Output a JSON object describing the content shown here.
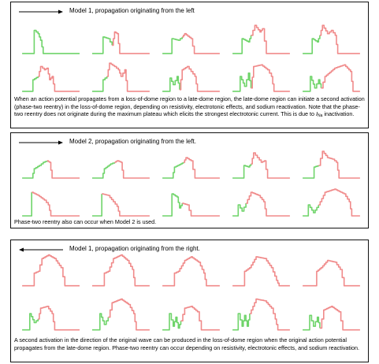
{
  "colors": {
    "green": "#6fd46a",
    "pink": "#f08a8a",
    "panel_border": "#111111"
  },
  "panels": [
    {
      "label": "Model 1, propagation originating from the left",
      "arrow_direction": "right",
      "caption_parts": [
        "When an action potential propagates from a loss-of-dome region to a late-dome region, the late-dome region can initiate a second activation (phase-two reentry) in the loss-of-dome region, depending on resistivity, electrotonic effects, and sodium reactivation. Note that the phase-two reentry does not originate during the maximum plateau which elicits the strongest electrotonic current. This is due to ",
        "I",
        "Na",
        " inactivation."
      ]
    },
    {
      "label": "Model 2, propagation originating from the left.",
      "arrow_direction": "right",
      "caption_parts": [
        "Phase-two reentry also can occur when Model 2 is used."
      ]
    },
    {
      "label": "Model 1, propagation originating from the right.",
      "arrow_direction": "left",
      "caption_parts": [
        "A second activation in the direction of the original wave can be produced in the loss-of-dome region when the original action potential propagates from the late-dome region. Phase-two reentry can occur depending on resistivity, electrotonic effects, and sodium reactivation."
      ]
    }
  ]
}
